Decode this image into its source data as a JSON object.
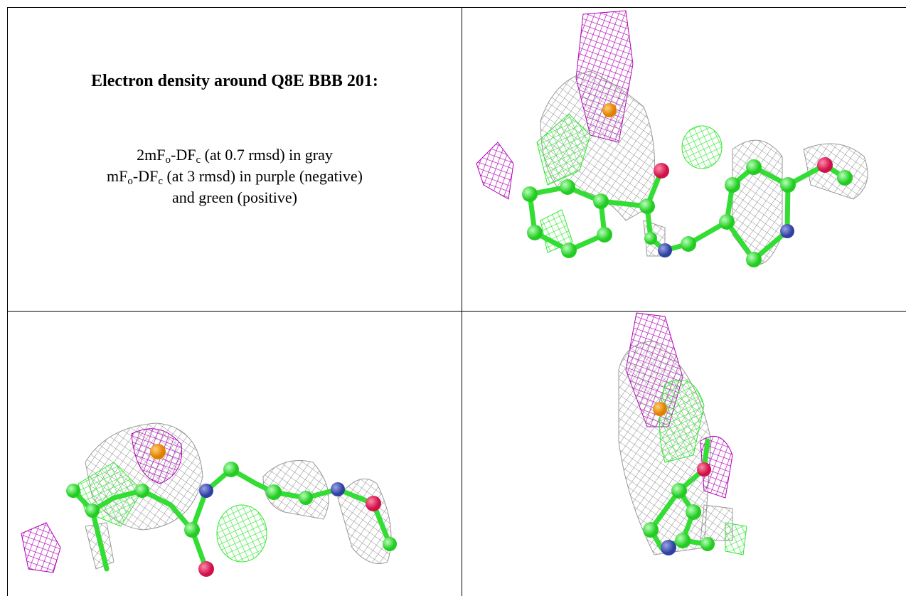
{
  "text_cell": {
    "title": "Electron density around Q8E BBB 201:",
    "lines": [
      [
        "2mF",
        "o",
        "-DF",
        "c",
        " (at 0.7 rmsd) in gray"
      ],
      [
        "mF",
        "o",
        "-DF",
        "c",
        " (at 3 rmsd) in purple (negative)"
      ],
      [
        "and green (positive)"
      ]
    ]
  }
}
